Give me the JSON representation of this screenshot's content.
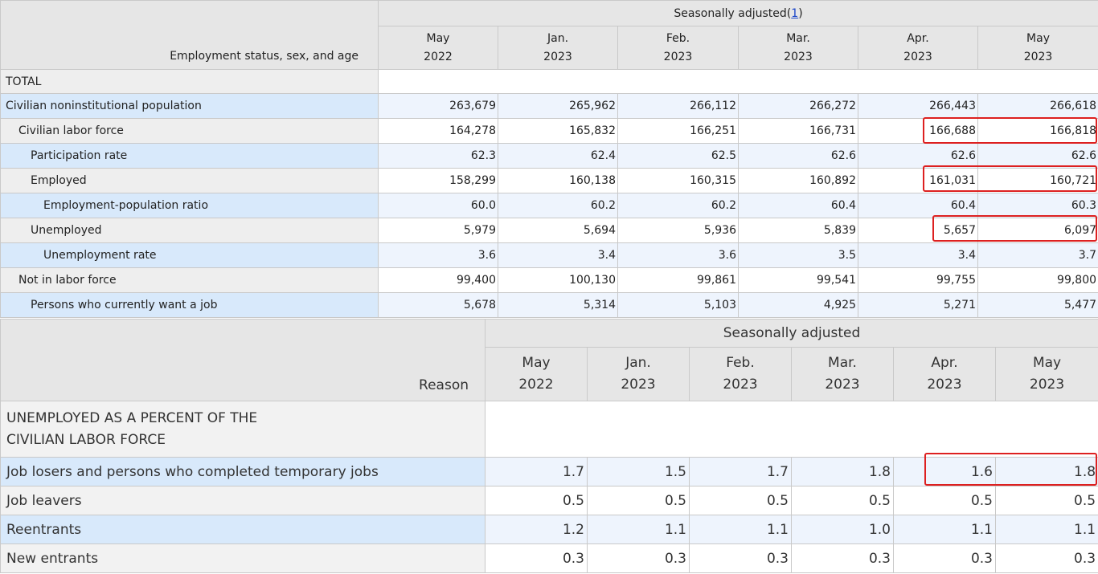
{
  "table1": {
    "stub_header": "Employment status, sex, and age",
    "group_header": "Seasonally adjusted",
    "group_footnote": "1",
    "columns": [
      {
        "month": "May",
        "year": "2022"
      },
      {
        "month": "Jan.",
        "year": "2023"
      },
      {
        "month": "Feb.",
        "year": "2023"
      },
      {
        "month": "Mar.",
        "year": "2023"
      },
      {
        "month": "Apr.",
        "year": "2023"
      },
      {
        "month": "May",
        "year": "2023"
      }
    ],
    "section": "TOTAL",
    "rows": [
      {
        "label": "Civilian noninstitutional population",
        "values": [
          "263,679",
          "265,962",
          "266,112",
          "266,272",
          "266,443",
          "266,618"
        ]
      },
      {
        "label": "Civilian labor force",
        "values": [
          "164,278",
          "165,832",
          "166,251",
          "166,731",
          "166,688",
          "166,818"
        ]
      },
      {
        "label": "Participation rate",
        "values": [
          "62.3",
          "62.4",
          "62.5",
          "62.6",
          "62.6",
          "62.6"
        ]
      },
      {
        "label": "Employed",
        "values": [
          "158,299",
          "160,138",
          "160,315",
          "160,892",
          "161,031",
          "160,721"
        ]
      },
      {
        "label": "Employment-population ratio",
        "values": [
          "60.0",
          "60.2",
          "60.2",
          "60.4",
          "60.4",
          "60.3"
        ]
      },
      {
        "label": "Unemployed",
        "values": [
          "5,979",
          "5,694",
          "5,936",
          "5,839",
          "5,657",
          "6,097"
        ]
      },
      {
        "label": "Unemployment rate",
        "values": [
          "3.6",
          "3.4",
          "3.6",
          "3.5",
          "3.4",
          "3.7"
        ]
      },
      {
        "label": "Not in labor force",
        "values": [
          "99,400",
          "100,130",
          "99,861",
          "99,541",
          "99,755",
          "99,800"
        ]
      },
      {
        "label": "Persons who currently want a job",
        "values": [
          "5,678",
          "5,314",
          "5,103",
          "4,925",
          "5,271",
          "5,477"
        ]
      }
    ]
  },
  "table2": {
    "stub_header": "Reason",
    "group_header": "Seasonally adjusted",
    "columns": [
      {
        "month": "May",
        "year": "2022"
      },
      {
        "month": "Jan.",
        "year": "2023"
      },
      {
        "month": "Feb.",
        "year": "2023"
      },
      {
        "month": "Mar.",
        "year": "2023"
      },
      {
        "month": "Apr.",
        "year": "2023"
      },
      {
        "month": "May",
        "year": "2023"
      }
    ],
    "section_line1": "UNEMPLOYED AS A PERCENT OF THE",
    "section_line2": "CIVILIAN LABOR FORCE",
    "rows": [
      {
        "label": "Job losers and persons who completed temporary jobs",
        "values": [
          "1.7",
          "1.5",
          "1.7",
          "1.8",
          "1.6",
          "1.8"
        ]
      },
      {
        "label": "Job leavers",
        "values": [
          "0.5",
          "0.5",
          "0.5",
          "0.5",
          "0.5",
          "0.5"
        ]
      },
      {
        "label": "Reentrants",
        "values": [
          "1.2",
          "1.1",
          "1.1",
          "1.0",
          "1.1",
          "1.1"
        ]
      },
      {
        "label": "New entrants",
        "values": [
          "0.3",
          "0.3",
          "0.3",
          "0.3",
          "0.3",
          "0.3"
        ]
      }
    ]
  },
  "highlight_color": "#dd2020"
}
